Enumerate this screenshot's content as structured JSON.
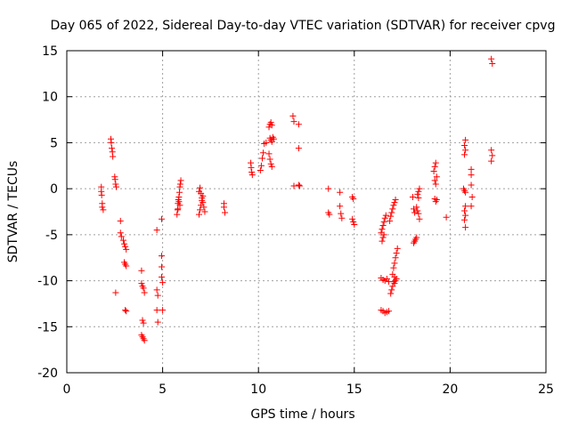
{
  "chart_data": {
    "type": "scatter",
    "title": "Day 065 of 2022, Sidereal Day-to-day VTEC variation (SDTVAR) for receiver cpvg",
    "xlabel": "GPS time / hours",
    "ylabel": "SDTVAR / TECUs",
    "xlim": [
      0,
      25
    ],
    "ylim": [
      -20,
      15
    ],
    "xticks": [
      0,
      5,
      10,
      15,
      20,
      25
    ],
    "yticks": [
      -20,
      -15,
      -10,
      -5,
      0,
      5,
      10,
      15
    ],
    "grid": true,
    "marker": "+",
    "color": "#ff0000",
    "series": [
      {
        "name": "SDTVAR",
        "points": [
          [
            1.8,
            0.2
          ],
          [
            1.8,
            -0.3
          ],
          [
            1.82,
            -0.7
          ],
          [
            1.85,
            -1.6
          ],
          [
            1.85,
            -2.0
          ],
          [
            1.9,
            -2.3
          ],
          [
            2.3,
            5.4
          ],
          [
            2.32,
            5.0
          ],
          [
            2.35,
            4.4
          ],
          [
            2.38,
            4.0
          ],
          [
            2.4,
            3.5
          ],
          [
            2.5,
            1.3
          ],
          [
            2.52,
            1.0
          ],
          [
            2.55,
            0.5
          ],
          [
            2.58,
            0.2
          ],
          [
            2.55,
            -11.3
          ],
          [
            2.8,
            -3.5
          ],
          [
            2.8,
            -4.8
          ],
          [
            2.85,
            -5.2
          ],
          [
            2.95,
            -5.6
          ],
          [
            3.0,
            -6.0
          ],
          [
            3.05,
            -6.3
          ],
          [
            3.1,
            -6.6
          ],
          [
            3.0,
            -8.0
          ],
          [
            3.05,
            -8.2
          ],
          [
            3.1,
            -8.4
          ],
          [
            3.05,
            -13.2
          ],
          [
            3.1,
            -13.3
          ],
          [
            3.9,
            -8.9
          ],
          [
            3.9,
            -10.3
          ],
          [
            3.95,
            -10.6
          ],
          [
            4.0,
            -10.8
          ],
          [
            4.05,
            -11.3
          ],
          [
            3.95,
            -14.3
          ],
          [
            4.0,
            -14.6
          ],
          [
            3.9,
            -15.9
          ],
          [
            3.95,
            -16.1
          ],
          [
            4.0,
            -16.3
          ],
          [
            4.05,
            -16.5
          ],
          [
            4.7,
            -4.5
          ],
          [
            4.7,
            -11.0
          ],
          [
            4.75,
            -11.6
          ],
          [
            4.7,
            -13.2
          ],
          [
            4.75,
            -14.5
          ],
          [
            4.95,
            -3.3
          ],
          [
            4.95,
            -7.3
          ],
          [
            4.95,
            -8.5
          ],
          [
            4.95,
            -9.6
          ],
          [
            5.0,
            -10.2
          ],
          [
            5.0,
            -13.2
          ],
          [
            5.75,
            -2.8
          ],
          [
            5.78,
            -2.3
          ],
          [
            5.8,
            -1.6
          ],
          [
            5.82,
            -1.2
          ],
          [
            5.85,
            -0.9
          ],
          [
            5.88,
            -0.4
          ],
          [
            5.9,
            0.2
          ],
          [
            5.92,
            0.5
          ],
          [
            5.95,
            0.9
          ],
          [
            5.85,
            -1.4
          ],
          [
            5.9,
            -1.8
          ],
          [
            5.8,
            -2.2
          ],
          [
            6.9,
            -2.8
          ],
          [
            6.95,
            -2.3
          ],
          [
            7.0,
            -1.8
          ],
          [
            7.05,
            -1.3
          ],
          [
            7.1,
            -0.8
          ],
          [
            6.9,
            -0.3
          ],
          [
            6.95,
            0.1
          ],
          [
            7.0,
            -0.5
          ],
          [
            7.05,
            -1.0
          ],
          [
            7.1,
            -1.5
          ],
          [
            7.15,
            -2.0
          ],
          [
            7.2,
            -2.5
          ],
          [
            8.2,
            -1.6
          ],
          [
            8.2,
            -2.0
          ],
          [
            8.25,
            -2.6
          ],
          [
            9.6,
            2.8
          ],
          [
            9.62,
            2.3
          ],
          [
            9.65,
            1.8
          ],
          [
            9.68,
            1.5
          ],
          [
            10.1,
            2.0
          ],
          [
            10.15,
            2.5
          ],
          [
            10.2,
            3.3
          ],
          [
            10.25,
            3.9
          ],
          [
            10.3,
            4.9
          ],
          [
            10.4,
            5.0
          ],
          [
            10.55,
            6.7
          ],
          [
            10.6,
            7.0
          ],
          [
            10.65,
            7.2
          ],
          [
            10.7,
            6.9
          ],
          [
            10.55,
            3.8
          ],
          [
            10.6,
            3.2
          ],
          [
            10.65,
            2.7
          ],
          [
            10.7,
            2.4
          ],
          [
            10.6,
            5.5
          ],
          [
            10.65,
            5.3
          ],
          [
            10.7,
            5.1
          ],
          [
            10.75,
            5.6
          ],
          [
            10.8,
            5.4
          ],
          [
            11.8,
            7.9
          ],
          [
            11.85,
            7.3
          ],
          [
            12.1,
            7.0
          ],
          [
            12.1,
            4.4
          ],
          [
            11.85,
            0.3
          ],
          [
            12.1,
            0.4
          ],
          [
            12.15,
            0.3
          ],
          [
            13.65,
            0.0
          ],
          [
            13.65,
            -2.6
          ],
          [
            13.7,
            -2.8
          ],
          [
            14.25,
            -0.4
          ],
          [
            14.25,
            -1.9
          ],
          [
            14.3,
            -2.7
          ],
          [
            14.35,
            -3.2
          ],
          [
            14.9,
            -0.9
          ],
          [
            14.95,
            -1.1
          ],
          [
            14.9,
            -3.3
          ],
          [
            14.95,
            -3.6
          ],
          [
            15.0,
            -3.9
          ],
          [
            16.4,
            -13.2
          ],
          [
            16.5,
            -13.3
          ],
          [
            16.6,
            -13.5
          ],
          [
            16.7,
            -13.4
          ],
          [
            16.8,
            -13.3
          ],
          [
            16.4,
            -9.7
          ],
          [
            16.5,
            -9.9
          ],
          [
            16.6,
            -10.0
          ],
          [
            16.7,
            -9.8
          ],
          [
            16.8,
            -10.1
          ],
          [
            16.4,
            -4.8
          ],
          [
            16.45,
            -4.4
          ],
          [
            16.5,
            -4.0
          ],
          [
            16.55,
            -3.6
          ],
          [
            16.6,
            -3.2
          ],
          [
            16.65,
            -2.9
          ],
          [
            16.5,
            -5.3
          ],
          [
            16.45,
            -5.7
          ],
          [
            16.55,
            -5.0
          ],
          [
            16.9,
            -11.4
          ],
          [
            16.95,
            -11.0
          ],
          [
            17.0,
            -10.6
          ],
          [
            17.05,
            -10.1
          ],
          [
            17.1,
            -9.6
          ],
          [
            17.0,
            -9.3
          ],
          [
            17.05,
            -8.6
          ],
          [
            17.1,
            -8.1
          ],
          [
            17.15,
            -7.5
          ],
          [
            17.2,
            -7.0
          ],
          [
            17.25,
            -6.5
          ],
          [
            17.1,
            -10.3
          ],
          [
            17.15,
            -10.0
          ],
          [
            17.2,
            -9.8
          ],
          [
            16.85,
            -3.5
          ],
          [
            16.9,
            -3.0
          ],
          [
            16.95,
            -2.6
          ],
          [
            17.0,
            -2.2
          ],
          [
            17.05,
            -1.8
          ],
          [
            17.1,
            -1.5
          ],
          [
            17.15,
            -1.2
          ],
          [
            18.05,
            -0.9
          ],
          [
            18.1,
            -2.2
          ],
          [
            18.15,
            -2.6
          ],
          [
            18.1,
            -5.9
          ],
          [
            18.15,
            -5.7
          ],
          [
            18.2,
            -5.5
          ],
          [
            18.25,
            -5.3
          ],
          [
            18.3,
            -0.6
          ],
          [
            18.35,
            -0.3
          ],
          [
            18.4,
            0.0
          ],
          [
            18.35,
            -1.0
          ],
          [
            18.25,
            -2.0
          ],
          [
            18.3,
            -2.4
          ],
          [
            18.35,
            -2.7
          ],
          [
            18.4,
            -3.3
          ],
          [
            19.25,
            2.8
          ],
          [
            19.2,
            2.4
          ],
          [
            19.15,
            1.9
          ],
          [
            19.3,
            1.3
          ],
          [
            19.2,
            0.9
          ],
          [
            19.25,
            0.5
          ],
          [
            19.2,
            -1.1
          ],
          [
            19.25,
            -1.4
          ],
          [
            19.3,
            -1.2
          ],
          [
            19.8,
            -3.1
          ],
          [
            20.8,
            5.3
          ],
          [
            20.75,
            4.7
          ],
          [
            20.8,
            4.2
          ],
          [
            20.75,
            3.7
          ],
          [
            20.7,
            0.0
          ],
          [
            20.75,
            -0.2
          ],
          [
            20.8,
            -0.4
          ],
          [
            20.8,
            -1.9
          ],
          [
            20.75,
            -2.4
          ],
          [
            20.8,
            -2.9
          ],
          [
            20.75,
            -3.4
          ],
          [
            20.8,
            -4.2
          ],
          [
            21.1,
            2.1
          ],
          [
            21.1,
            1.5
          ],
          [
            21.1,
            0.4
          ],
          [
            21.15,
            -0.9
          ],
          [
            21.1,
            -1.9
          ],
          [
            22.15,
            14.1
          ],
          [
            22.2,
            13.6
          ],
          [
            22.15,
            4.2
          ],
          [
            22.2,
            3.6
          ],
          [
            22.15,
            3.0
          ]
        ]
      }
    ]
  }
}
